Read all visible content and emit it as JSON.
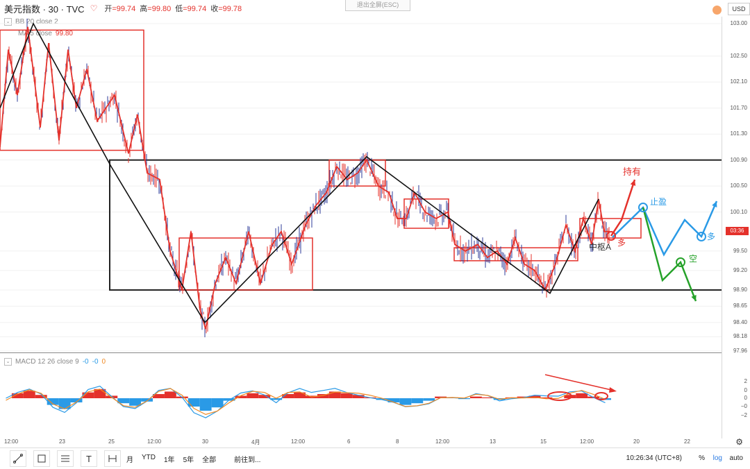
{
  "header": {
    "symbol": "美元指数 · 30 · TVC",
    "ohlc": [
      {
        "label": "开",
        "value": "=99.74"
      },
      {
        "label": "高",
        "value": "=99.80"
      },
      {
        "label": "低",
        "value": "=99.74"
      },
      {
        "label": "收",
        "value": "=99.78"
      }
    ],
    "exit_fullscreen": "退出全屏(ESC)",
    "currency": "USD"
  },
  "indicators": {
    "bb": "BB 20 close 2",
    "ma": "MA 5 close",
    "ma_value": "99.80",
    "macd": "MACD 12 26 close 9",
    "macd_values": [
      "-0",
      "-0",
      "0"
    ]
  },
  "price_axis": [
    "103.00",
    "102.50",
    "102.10",
    "101.70",
    "101.30",
    "100.90",
    "100.50",
    "100.10",
    "99.50",
    "99.20",
    "98.90",
    "98.65",
    "98.40",
    "98.18",
    "97.96"
  ],
  "current_price": "03:36",
  "macd_axis": [
    "2",
    "0",
    "0",
    "−0",
    "−2"
  ],
  "time_axis": [
    "12:00",
    "23",
    "25",
    "12:00",
    "30",
    "4月",
    "12:00",
    "6",
    "8",
    "12:00",
    "13",
    "15",
    "12:00",
    "20",
    "22"
  ],
  "annotations": {
    "hold": "持有",
    "take_profit": "止盈",
    "short": "空",
    "long1": "多",
    "long2": "多",
    "center": "中枢A"
  },
  "toolbar": {
    "periods": [
      "月",
      "YTD",
      "1年",
      "5年",
      "全部"
    ],
    "goto": "前往到...",
    "clock": "10:26:34 (UTC+8)",
    "percent": "%",
    "log": "log",
    "auto": "auto"
  },
  "colors": {
    "up": "#e4312b",
    "down": "#2e3b9a",
    "box": "#e4312b",
    "swing": "#111111",
    "blue": "#2a9ae6",
    "green": "#26a22a",
    "macd_pos": "#e4312b",
    "macd_neg": "#2a9ae6"
  },
  "chart_data": {
    "type": "line",
    "title": "美元指数 · 30 · TVC",
    "ylim": [
      97.96,
      103.0
    ],
    "price_path": [
      [
        0,
        101.1
      ],
      [
        12,
        102.6
      ],
      [
        25,
        101.9
      ],
      [
        40,
        102.95
      ],
      [
        58,
        101.4
      ],
      [
        70,
        102.7
      ],
      [
        85,
        101.2
      ],
      [
        98,
        102.6
      ],
      [
        110,
        101.7
      ],
      [
        125,
        102.3
      ],
      [
        140,
        101.5
      ],
      [
        165,
        101.9
      ],
      [
        185,
        101.0
      ],
      [
        198,
        101.6
      ],
      [
        212,
        100.7
      ],
      [
        230,
        100.6
      ],
      [
        245,
        99.5
      ],
      [
        262,
        98.9
      ],
      [
        275,
        99.8
      ],
      [
        288,
        98.6
      ],
      [
        296,
        98.3
      ],
      [
        310,
        99.0
      ],
      [
        325,
        99.4
      ],
      [
        340,
        99.0
      ],
      [
        358,
        99.8
      ],
      [
        375,
        99.0
      ],
      [
        392,
        99.6
      ],
      [
        405,
        99.8
      ],
      [
        420,
        99.3
      ],
      [
        440,
        99.9
      ],
      [
        455,
        100.2
      ],
      [
        470,
        100.4
      ],
      [
        485,
        100.8
      ],
      [
        500,
        100.6
      ],
      [
        515,
        100.7
      ],
      [
        528,
        100.9
      ],
      [
        545,
        100.5
      ],
      [
        560,
        100.4
      ],
      [
        572,
        100.0
      ],
      [
        585,
        100.0
      ],
      [
        597,
        100.4
      ],
      [
        612,
        100.1
      ],
      [
        628,
        100.0
      ],
      [
        645,
        100.1
      ],
      [
        655,
        99.6
      ],
      [
        670,
        99.5
      ],
      [
        688,
        99.6
      ],
      [
        702,
        99.4
      ],
      [
        716,
        99.5
      ],
      [
        730,
        99.3
      ],
      [
        742,
        99.7
      ],
      [
        755,
        99.3
      ],
      [
        770,
        99.2
      ],
      [
        785,
        98.9
      ],
      [
        800,
        99.3
      ],
      [
        815,
        99.9
      ],
      [
        828,
        99.5
      ],
      [
        840,
        100.0
      ],
      [
        852,
        99.6
      ],
      [
        862,
        100.3
      ],
      [
        870,
        99.8
      ],
      [
        878,
        99.8
      ]
    ],
    "swing_points": [
      [
        0,
        101.7
      ],
      [
        48,
        103.0
      ],
      [
        160,
        100.8
      ],
      [
        295,
        98.4
      ],
      [
        528,
        100.95
      ],
      [
        792,
        98.85
      ],
      [
        862,
        100.3
      ]
    ],
    "boxes": [
      {
        "x1": 0,
        "x2": 207,
        "high": 102.9,
        "low": 101.05
      },
      {
        "x1": 158,
        "x2": 1040,
        "high": 100.9,
        "low": 98.9
      },
      {
        "x1": 258,
        "x2": 450,
        "high": 99.7,
        "low": 98.9
      },
      {
        "x1": 474,
        "x2": 555,
        "high": 100.9,
        "low": 100.5
      },
      {
        "x1": 582,
        "x2": 646,
        "high": 100.3,
        "low": 99.85
      },
      {
        "x1": 654,
        "x2": 832,
        "high": 99.55,
        "low": 99.35
      },
      {
        "x1": 835,
        "x2": 923,
        "high": 100.0,
        "low": 99.7
      }
    ],
    "macd_hist": [
      0,
      0.6,
      0.9,
      0.4,
      -0.8,
      -1.3,
      -0.5,
      0.7,
      1.1,
      0.3,
      -0.6,
      -0.9,
      -0.4,
      0.5,
      0.8,
      0.2,
      -1.0,
      -1.5,
      -1.1,
      -0.3,
      0.3,
      0.6,
      0.4,
      -0.2,
      0.5,
      0.7,
      0.3,
      0.5,
      0.8,
      0.6,
      0.4,
      0.1,
      -0.2,
      -0.5,
      -0.8,
      -0.6,
      -0.3,
      0.2,
      0.1,
      -0.1,
      0.2,
      0.1,
      -0.2,
      0.1,
      0.2,
      0.3,
      0.1,
      0.0,
      0.4,
      0.6,
      0.2,
      -0.2
    ]
  }
}
